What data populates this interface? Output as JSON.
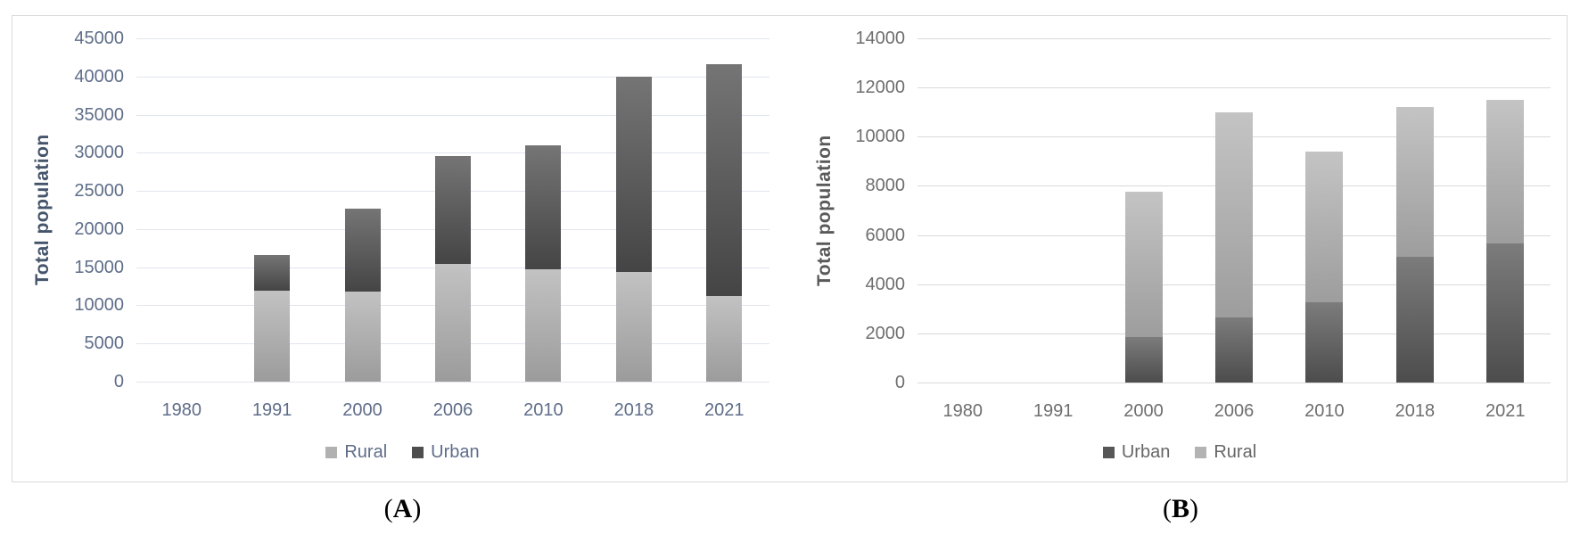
{
  "figure": {
    "captions": [
      {
        "pre": "(",
        "letter": "A",
        "post": ")"
      },
      {
        "pre": "(",
        "letter": "B",
        "post": ")"
      }
    ]
  },
  "chart_data": [
    {
      "id": "A",
      "type": "bar",
      "stacked": true,
      "title": "",
      "xlabel": "",
      "ylabel": "Total population",
      "ylim": [
        0,
        45000
      ],
      "yticks": [
        0,
        5000,
        10000,
        15000,
        20000,
        25000,
        30000,
        35000,
        40000,
        45000
      ],
      "grid": true,
      "legend_position": "bottom",
      "categories": [
        "1980",
        "1991",
        "2000",
        "2006",
        "2010",
        "2018",
        "2021"
      ],
      "series": [
        {
          "name": "Rural",
          "color": "#b1b1b1",
          "values": [
            0,
            11900,
            11800,
            15400,
            14700,
            14400,
            11200
          ]
        },
        {
          "name": "Urban",
          "color": "#4e4e4e",
          "values": [
            0,
            4700,
            10900,
            14200,
            16300,
            25600,
            30400
          ]
        }
      ]
    },
    {
      "id": "B",
      "type": "bar",
      "stacked": true,
      "title": "",
      "xlabel": "",
      "ylabel": "Total population",
      "ylim": [
        0,
        14000
      ],
      "yticks": [
        0,
        2000,
        4000,
        6000,
        8000,
        10000,
        12000,
        14000
      ],
      "grid": true,
      "legend_position": "bottom",
      "categories": [
        "1980",
        "1991",
        "2000",
        "2006",
        "2010",
        "2018",
        "2021"
      ],
      "series": [
        {
          "name": "Urban",
          "color": "#575757",
          "values": [
            0,
            0,
            1850,
            2650,
            3250,
            5100,
            5650
          ]
        },
        {
          "name": "Rural",
          "color": "#b3b3b3",
          "values": [
            0,
            0,
            5900,
            8350,
            6150,
            6100,
            5850
          ]
        }
      ]
    }
  ]
}
